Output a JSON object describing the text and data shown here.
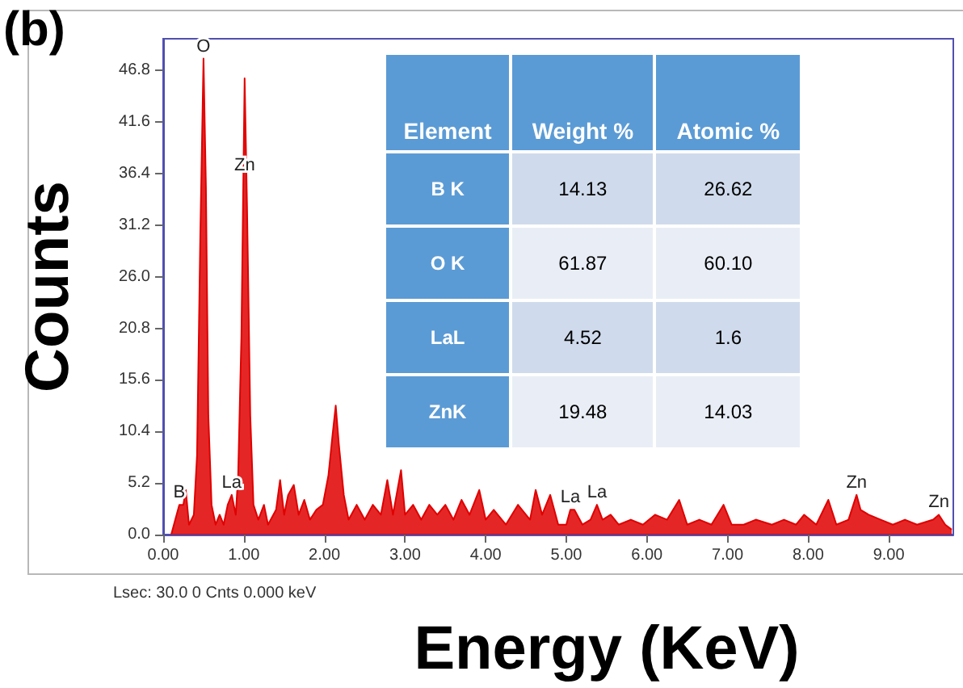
{
  "chart_data": [
    {
      "type": "area",
      "xlabel": "Energy (KeV)",
      "ylabel": "Counts",
      "xlim": [
        0,
        9.8
      ],
      "ylim": [
        0,
        50
      ],
      "xticks": [
        {
          "value": 0,
          "label": "0.00"
        },
        {
          "value": 1,
          "label": "1.00"
        },
        {
          "value": 2,
          "label": "2.00"
        },
        {
          "value": 3,
          "label": "3.00"
        },
        {
          "value": 4,
          "label": "4.00"
        },
        {
          "value": 5,
          "label": "5.00"
        },
        {
          "value": 6,
          "label": "6.00"
        },
        {
          "value": 7,
          "label": "7.00"
        },
        {
          "value": 8,
          "label": "8.00"
        },
        {
          "value": 9,
          "label": "9.00"
        }
      ],
      "yticks": [
        {
          "value": 0,
          "label": "0.0"
        },
        5.2,
        10.4,
        15.6,
        20.8,
        {
          "value": 26,
          "label": "26.0"
        },
        31.2,
        36.4,
        41.6,
        46.8
      ],
      "series": [
        {
          "color": "#e00000",
          "x": [
            0.1,
            0.15,
            0.2,
            0.25,
            0.28,
            0.32,
            0.38,
            0.42,
            0.46,
            0.5,
            0.53,
            0.56,
            0.6,
            0.65,
            0.7,
            0.75,
            0.8,
            0.85,
            0.9,
            0.93,
            0.97,
            1.01,
            1.04,
            1.08,
            1.12,
            1.18,
            1.25,
            1.3,
            1.4,
            1.45,
            1.5,
            1.55,
            1.62,
            1.68,
            1.75,
            1.82,
            1.9,
            1.98,
            2.05,
            2.1,
            2.14,
            2.18,
            2.24,
            2.3,
            2.4,
            2.5,
            2.6,
            2.7,
            2.78,
            2.85,
            2.95,
            3.0,
            3.1,
            3.2,
            3.3,
            3.4,
            3.5,
            3.6,
            3.7,
            3.8,
            3.92,
            4.0,
            4.1,
            4.25,
            4.4,
            4.55,
            4.62,
            4.7,
            4.8,
            4.9,
            5.0,
            5.05,
            5.1,
            5.2,
            5.3,
            5.38,
            5.45,
            5.55,
            5.65,
            5.8,
            5.95,
            6.1,
            6.25,
            6.4,
            6.5,
            6.65,
            6.8,
            6.95,
            7.05,
            7.2,
            7.35,
            7.55,
            7.7,
            7.85,
            7.95,
            8.1,
            8.25,
            8.35,
            8.5,
            8.6,
            8.65,
            8.75,
            8.9,
            9.05,
            9.2,
            9.35,
            9.55,
            9.62,
            9.7,
            9.78
          ],
          "values": [
            0,
            1.5,
            3,
            3,
            4.5,
            1,
            2,
            8,
            30,
            48,
            35,
            12,
            3,
            1,
            2,
            1,
            3,
            4,
            2,
            6,
            20,
            46,
            33,
            12,
            3,
            1.5,
            3,
            1,
            2.5,
            5.5,
            2,
            4,
            5,
            2,
            3.5,
            1.5,
            2.5,
            3,
            6,
            10,
            13,
            9,
            4,
            1.5,
            3,
            1.5,
            3,
            2,
            5.5,
            2,
            6.5,
            2,
            3,
            1.5,
            3,
            2,
            3,
            1.5,
            3.5,
            2,
            4.5,
            1.5,
            2.5,
            1,
            3,
            1.5,
            4.5,
            2,
            4,
            1,
            1,
            2.5,
            2.5,
            1,
            1.5,
            3,
            1.5,
            2,
            1,
            1.5,
            1,
            2,
            1.5,
            3.5,
            1,
            1.5,
            1,
            3,
            1,
            1,
            1.5,
            1,
            1.5,
            1,
            2,
            1,
            3.5,
            1,
            1.5,
            4,
            2.5,
            2,
            1.5,
            1,
            1.5,
            1,
            1.5,
            2,
            1,
            0.5
          ]
        }
      ],
      "annotations": [
        "(b)",
        "Lsec: 30.0 0 Cnts  0.000 keV",
        {
          "text": "B",
          "x": 0.2,
          "y": 3
        },
        {
          "text": "O",
          "x": 0.5,
          "y": 48
        },
        {
          "text": "Zn",
          "x": 1.01,
          "y": 36
        },
        {
          "text": "La",
          "x": 0.85,
          "y": 4
        },
        {
          "text": "La",
          "x": 5.05,
          "y": 2.5
        },
        {
          "text": "La",
          "x": 5.38,
          "y": 3
        },
        {
          "text": "Zn",
          "x": 8.6,
          "y": 4
        },
        {
          "text": "Zn",
          "x": 9.62,
          "y": 2
        }
      ],
      "grid": false,
      "marker": "none"
    },
    {
      "type": "other",
      "categories": [
        "Element",
        "Weight %",
        "Atomic %"
      ],
      "y_categories": [
        "B K",
        "O K",
        "LaL",
        "ZnK"
      ],
      "cell_labels": [
        [
          "14.13",
          "26.62"
        ],
        [
          "61.87",
          "60.10"
        ],
        [
          "4.52",
          "1.6"
        ],
        [
          "19.48",
          "14.03"
        ]
      ]
    }
  ]
}
